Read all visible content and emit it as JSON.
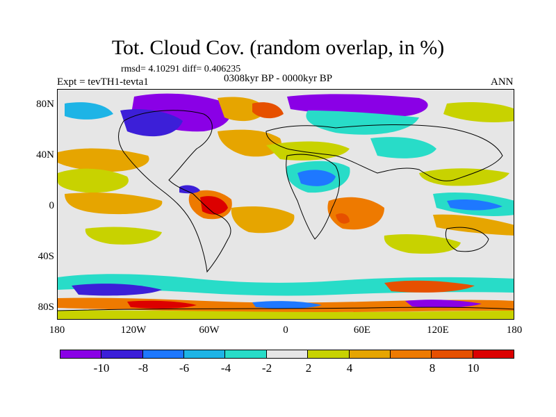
{
  "header": {
    "title": "Tot. Cloud Cov. (random overlap, in %)",
    "stats": "rmsd= 4.10291 diff= 0.406235",
    "experiment": "Expt = tevTH1-tevta1",
    "period": "0308kyr BP - 0000kyr BP",
    "season": "ANN"
  },
  "axes": {
    "lat_labels": [
      "80N",
      "40N",
      "0",
      "40S",
      "80S"
    ],
    "lon_labels": [
      "180",
      "120W",
      "60W",
      "0",
      "60E",
      "120E",
      "180"
    ]
  },
  "colorbar": {
    "colors": [
      "#8a00e6",
      "#3c1fd8",
      "#1e78ff",
      "#1eb4e6",
      "#28dcc8",
      "#e6e6e6",
      "#c8d200",
      "#e6a500",
      "#ee7a00",
      "#e65000",
      "#dc0000"
    ],
    "labels": [
      "-10",
      "-8",
      "-6",
      "-4",
      "-2",
      "2",
      "4",
      "8",
      "10"
    ]
  }
}
